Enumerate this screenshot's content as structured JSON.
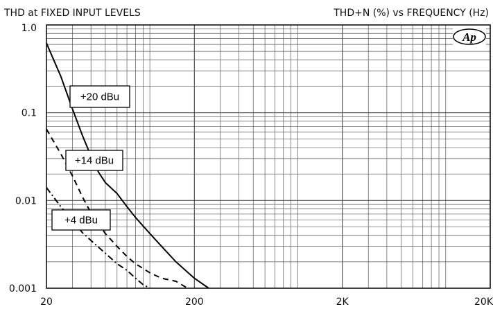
{
  "chart_data": {
    "type": "line",
    "title_left": "THD at FIXED INPUT LEVELS",
    "title_right": "THD+N (%) vs FREQUENCY (Hz)",
    "logo": "Ap",
    "xscale": "log",
    "yscale": "log",
    "xlim": [
      20,
      20000
    ],
    "ylim": [
      0.001,
      1.0
    ],
    "grid": true,
    "x_tick_labels": [
      {
        "value": 20,
        "label": "20"
      },
      {
        "value": 200,
        "label": "200"
      },
      {
        "value": 2000,
        "label": "2K"
      },
      {
        "value": 20000,
        "label": "20K"
      }
    ],
    "y_tick_labels": [
      {
        "value": 1.0,
        "label": "1.0"
      },
      {
        "value": 0.1,
        "label": "0.1"
      },
      {
        "value": 0.01,
        "label": "0.01"
      },
      {
        "value": 0.001,
        "label": "0.001"
      }
    ],
    "series": [
      {
        "name": "+20 dBu",
        "style": "solid",
        "color": "#000000",
        "points": [
          [
            20,
            0.62
          ],
          [
            25,
            0.26
          ],
          [
            30,
            0.11
          ],
          [
            35,
            0.055
          ],
          [
            40,
            0.032
          ],
          [
            45,
            0.021
          ],
          [
            50,
            0.016
          ],
          [
            60,
            0.012
          ],
          [
            70,
            0.0085
          ],
          [
            80,
            0.0064
          ],
          [
            100,
            0.0042
          ],
          [
            120,
            0.003
          ],
          [
            150,
            0.002
          ],
          [
            200,
            0.0013
          ],
          [
            250,
            0.001
          ]
        ]
      },
      {
        "name": "+14 dBu",
        "style": "dashed",
        "color": "#000000",
        "points": [
          [
            20,
            0.065
          ],
          [
            25,
            0.034
          ],
          [
            30,
            0.019
          ],
          [
            35,
            0.011
          ],
          [
            40,
            0.0072
          ],
          [
            50,
            0.0042
          ],
          [
            60,
            0.003
          ],
          [
            70,
            0.0023
          ],
          [
            80,
            0.0019
          ],
          [
            100,
            0.0015
          ],
          [
            120,
            0.0013
          ],
          [
            150,
            0.0012
          ],
          [
            180,
            0.001
          ]
        ]
      },
      {
        "name": "+4 dBu",
        "style": "dash-dot",
        "color": "#000000",
        "points": [
          [
            20,
            0.014
          ],
          [
            25,
            0.0085
          ],
          [
            30,
            0.0058
          ],
          [
            35,
            0.0043
          ],
          [
            40,
            0.0035
          ],
          [
            50,
            0.0025
          ],
          [
            60,
            0.0019
          ],
          [
            70,
            0.0016
          ],
          [
            80,
            0.0013
          ],
          [
            90,
            0.0011
          ],
          [
            100,
            0.001
          ]
        ]
      }
    ]
  }
}
